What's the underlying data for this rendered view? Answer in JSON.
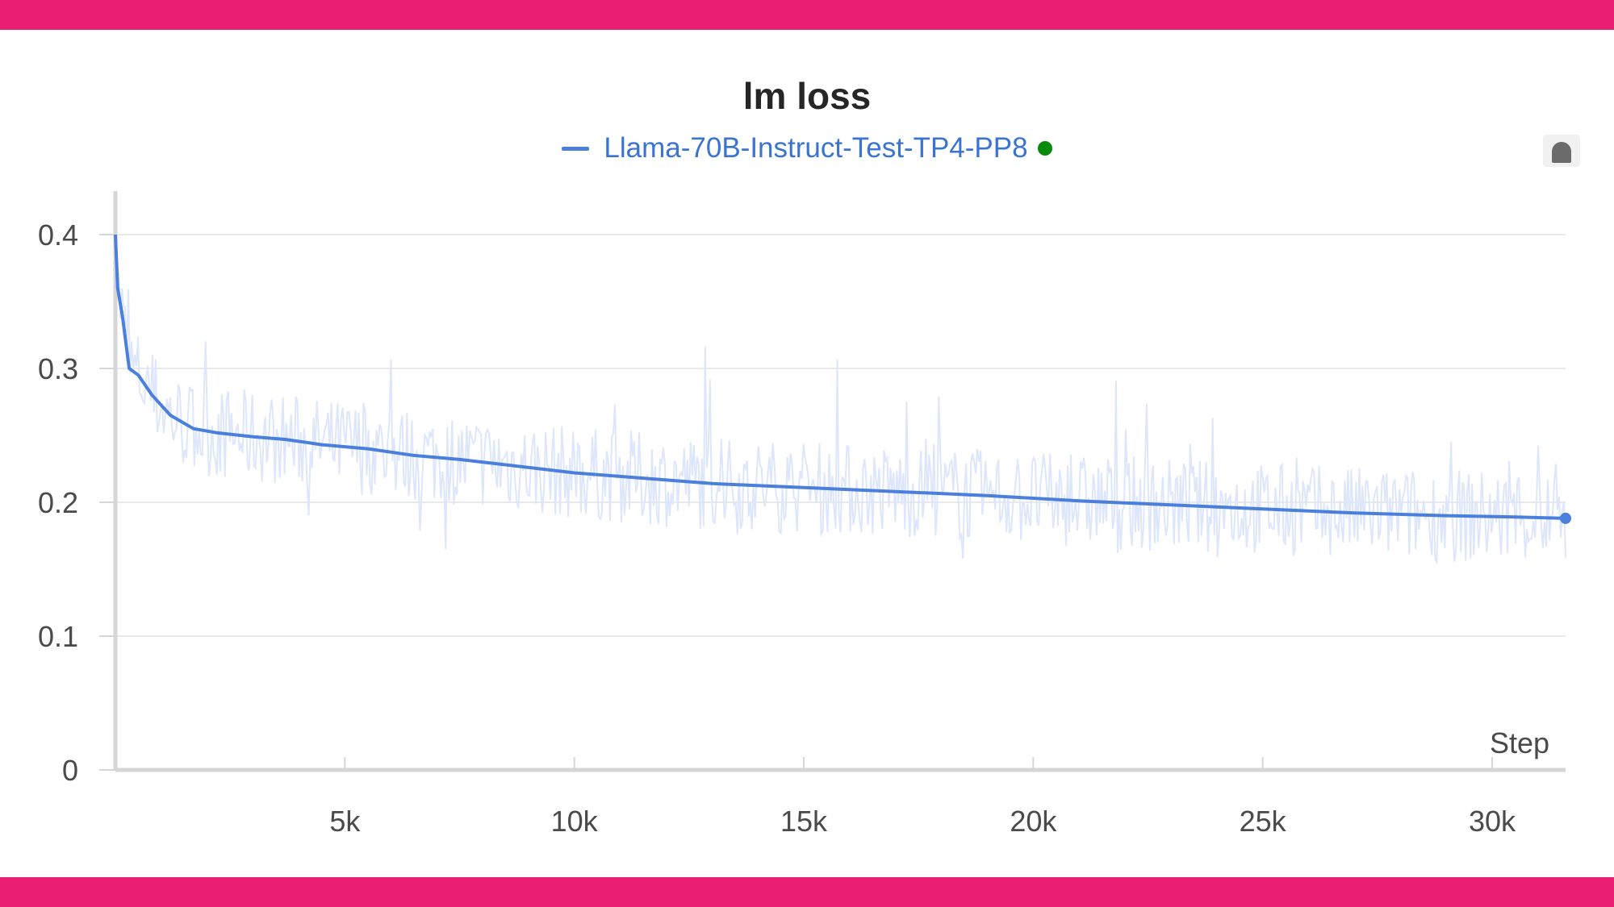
{
  "colors": {
    "band": "#e91e73",
    "series": "#4a7fdb",
    "series_raw": "#dde6fb",
    "grid": "#e9e9e9",
    "axis": "#d6d6d6",
    "status_dot": "#0a8a0a",
    "title": "#262626",
    "legend_text": "#3b73d4"
  },
  "icons": {
    "lock": "lock-icon"
  },
  "chart_data": {
    "type": "line",
    "title": "lm loss",
    "xlabel": "Step",
    "ylabel": "",
    "xlim": [
      0,
      31600
    ],
    "ylim": [
      0,
      0.42
    ],
    "yticks": [
      0,
      0.1,
      0.2,
      0.3,
      0.4
    ],
    "ytick_labels": [
      "0",
      "0.1",
      "0.2",
      "0.3",
      "0.4"
    ],
    "xticks": [
      5000,
      10000,
      15000,
      20000,
      25000,
      30000
    ],
    "xtick_labels": [
      "5k",
      "10k",
      "15k",
      "20k",
      "25k",
      "30k"
    ],
    "grid": true,
    "legend_position": "top-center",
    "series": [
      {
        "name": "Llama-70B-Instruct-Test-TP4-PP8",
        "status": "running",
        "x": [
          0,
          50,
          150,
          300,
          500,
          800,
          1200,
          1700,
          2200,
          3000,
          3700,
          4500,
          5500,
          6500,
          7500,
          8500,
          10000,
          11500,
          13000,
          15000,
          17000,
          19000,
          21000,
          23000,
          25000,
          27000,
          29000,
          30500,
          31600
        ],
        "values": [
          0.4,
          0.36,
          0.34,
          0.3,
          0.295,
          0.28,
          0.265,
          0.255,
          0.252,
          0.249,
          0.247,
          0.243,
          0.24,
          0.235,
          0.232,
          0.228,
          0.222,
          0.218,
          0.214,
          0.211,
          0.208,
          0.205,
          0.201,
          0.198,
          0.195,
          0.192,
          0.19,
          0.189,
          0.188
        ]
      }
    ]
  }
}
